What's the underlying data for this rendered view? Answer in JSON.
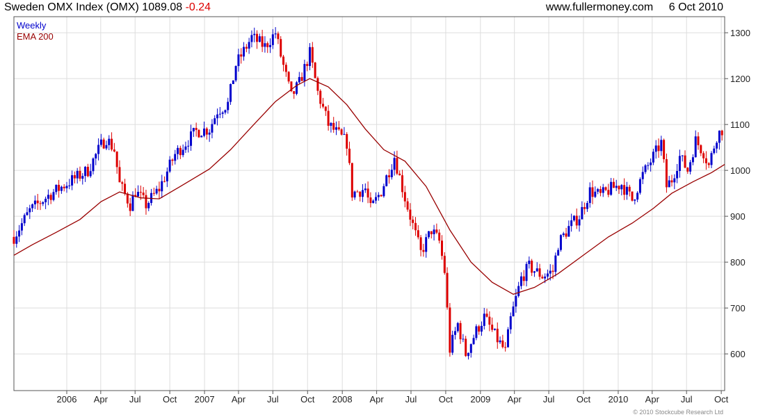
{
  "header": {
    "instrument": "Sweden OMX Index (OMX)",
    "last": "1089.08",
    "change": "-0.24",
    "site": "www.fullermoney.com",
    "date": "6 Oct 2010"
  },
  "legend": {
    "items": [
      "Weekly",
      "EMA 200"
    ]
  },
  "footer": {
    "copyright": "© 2010 Stockcube Research Ltd"
  },
  "colors": {
    "up": "#0000cc",
    "down": "#dd0000",
    "ema": "#990000",
    "grid": "#dddddd",
    "frame": "#555555",
    "chg": "#dd0000"
  },
  "chart_data": {
    "type": "candlestick",
    "title": "Sweden OMX Index (OMX)",
    "interval": "Weekly",
    "ylim": [
      520,
      1335
    ],
    "yticks": [
      600,
      700,
      800,
      900,
      1000,
      1100,
      1200,
      1300
    ],
    "x_range": [
      "2005-08-14",
      "2010-10-10"
    ],
    "xticks": [
      {
        "label": "2006",
        "date": "2006-01-01"
      },
      {
        "label": "Apr",
        "date": "2006-04-01"
      },
      {
        "label": "Jul",
        "date": "2006-07-01"
      },
      {
        "label": "Oct",
        "date": "2006-10-01"
      },
      {
        "label": "2007",
        "date": "2007-01-01"
      },
      {
        "label": "Apr",
        "date": "2007-04-01"
      },
      {
        "label": "Jul",
        "date": "2007-07-01"
      },
      {
        "label": "Oct",
        "date": "2007-10-01"
      },
      {
        "label": "2008",
        "date": "2008-01-01"
      },
      {
        "label": "Apr",
        "date": "2008-04-01"
      },
      {
        "label": "Jul",
        "date": "2008-07-01"
      },
      {
        "label": "Oct",
        "date": "2008-10-01"
      },
      {
        "label": "2009",
        "date": "2009-01-01"
      },
      {
        "label": "Apr",
        "date": "2009-04-01"
      },
      {
        "label": "Jul",
        "date": "2009-07-01"
      },
      {
        "label": "Oct",
        "date": "2009-10-01"
      },
      {
        "label": "2010",
        "date": "2010-01-01"
      },
      {
        "label": "Apr",
        "date": "2010-04-01"
      },
      {
        "label": "Jul",
        "date": "2010-07-01"
      },
      {
        "label": "Oct",
        "date": "2010-10-01"
      }
    ],
    "grid": true,
    "legend": "top-left",
    "close_path": [
      [
        "2005-08-14",
        855
      ],
      [
        "2005-09-25",
        912
      ],
      [
        "2005-11-13",
        945
      ],
      [
        "2006-01-08",
        975
      ],
      [
        "2006-02-26",
        1000
      ],
      [
        "2006-04-02",
        1055
      ],
      [
        "2006-04-16",
        1070
      ],
      [
        "2006-05-07",
        1045
      ],
      [
        "2006-05-21",
        970
      ],
      [
        "2006-06-18",
        925
      ],
      [
        "2006-07-02",
        955
      ],
      [
        "2006-07-30",
        925
      ],
      [
        "2006-09-03",
        960
      ],
      [
        "2006-10-15",
        1035
      ],
      [
        "2006-12-10",
        1085
      ],
      [
        "2007-01-14",
        1090
      ],
      [
        "2007-02-04",
        1130
      ],
      [
        "2007-03-04",
        1145
      ],
      [
        "2007-03-25",
        1230
      ],
      [
        "2007-05-06",
        1290
      ],
      [
        "2007-06-10",
        1270
      ],
      [
        "2007-07-08",
        1300
      ],
      [
        "2007-07-22",
        1250
      ],
      [
        "2007-08-19",
        1160
      ],
      [
        "2007-09-09",
        1190
      ],
      [
        "2007-10-07",
        1255
      ],
      [
        "2007-10-28",
        1170
      ],
      [
        "2007-11-25",
        1100
      ],
      [
        "2008-01-13",
        1060
      ],
      [
        "2008-01-27",
        950
      ],
      [
        "2008-03-02",
        960
      ],
      [
        "2008-03-16",
        915
      ],
      [
        "2008-04-13",
        955
      ],
      [
        "2008-05-18",
        1030
      ],
      [
        "2008-06-15",
        940
      ],
      [
        "2008-07-13",
        860
      ],
      [
        "2008-07-27",
        820
      ],
      [
        "2008-08-24",
        870
      ],
      [
        "2008-09-14",
        845
      ],
      [
        "2008-09-28",
        780
      ],
      [
        "2008-10-12",
        610
      ],
      [
        "2008-11-02",
        665
      ],
      [
        "2008-11-23",
        600
      ],
      [
        "2008-12-21",
        650
      ],
      [
        "2009-01-11",
        680
      ],
      [
        "2009-02-08",
        640
      ],
      [
        "2009-03-08",
        605
      ],
      [
        "2009-03-22",
        675
      ],
      [
        "2009-04-19",
        765
      ],
      [
        "2009-05-10",
        790
      ],
      [
        "2009-06-14",
        770
      ],
      [
        "2009-07-12",
        780
      ],
      [
        "2009-07-26",
        840
      ],
      [
        "2009-08-23",
        875
      ],
      [
        "2009-09-20",
        900
      ],
      [
        "2009-10-18",
        955
      ],
      [
        "2009-11-15",
        945
      ],
      [
        "2009-12-13",
        960
      ],
      [
        "2010-01-10",
        970
      ],
      [
        "2010-02-07",
        935
      ],
      [
        "2010-03-07",
        990
      ],
      [
        "2010-04-04",
        1030
      ],
      [
        "2010-04-25",
        1060
      ],
      [
        "2010-05-09",
        965
      ],
      [
        "2010-05-23",
        980
      ],
      [
        "2010-06-13",
        1030
      ],
      [
        "2010-07-04",
        1000
      ],
      [
        "2010-07-25",
        1065
      ],
      [
        "2010-08-15",
        1040
      ],
      [
        "2010-08-29",
        1010
      ],
      [
        "2010-09-19",
        1075
      ],
      [
        "2010-10-03",
        1089
      ]
    ],
    "ema_path": [
      [
        "2005-08-14",
        815
      ],
      [
        "2005-10-02",
        838
      ],
      [
        "2005-12-04",
        865
      ],
      [
        "2006-02-05",
        893
      ],
      [
        "2006-04-02",
        932
      ],
      [
        "2006-05-21",
        953
      ],
      [
        "2006-07-16",
        940
      ],
      [
        "2006-09-03",
        938
      ],
      [
        "2006-10-29",
        965
      ],
      [
        "2007-01-14",
        1003
      ],
      [
        "2007-03-11",
        1045
      ],
      [
        "2007-05-06",
        1095
      ],
      [
        "2007-07-08",
        1150
      ],
      [
        "2007-09-02",
        1185
      ],
      [
        "2007-10-07",
        1200
      ],
      [
        "2007-11-25",
        1182
      ],
      [
        "2008-01-13",
        1143
      ],
      [
        "2008-03-02",
        1090
      ],
      [
        "2008-04-20",
        1045
      ],
      [
        "2008-06-15",
        1020
      ],
      [
        "2008-08-10",
        965
      ],
      [
        "2008-10-12",
        870
      ],
      [
        "2008-12-07",
        800
      ],
      [
        "2009-02-01",
        756
      ],
      [
        "2009-03-29",
        730
      ],
      [
        "2009-05-24",
        745
      ],
      [
        "2009-07-26",
        775
      ],
      [
        "2009-10-04",
        817
      ],
      [
        "2009-12-06",
        855
      ],
      [
        "2010-02-07",
        885
      ],
      [
        "2010-04-04",
        917
      ],
      [
        "2010-05-23",
        950
      ],
      [
        "2010-07-18",
        975
      ],
      [
        "2010-09-05",
        995
      ],
      [
        "2010-10-10",
        1013
      ]
    ]
  }
}
